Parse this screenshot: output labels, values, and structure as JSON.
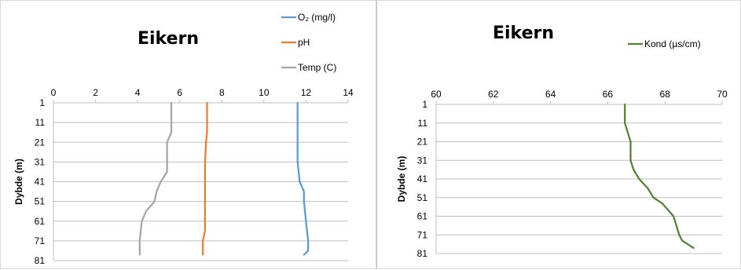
{
  "chart_data": [
    {
      "type": "line",
      "title": "Eikern",
      "xlabel": "",
      "ylabel": "Dybde (m)",
      "xlim": [
        0,
        14
      ],
      "x_ticks": [
        "0",
        "2",
        "4",
        "6",
        "8",
        "10",
        "12",
        "14"
      ],
      "ylim": [
        1,
        81
      ],
      "y_ticks": [
        "1",
        "11",
        "21",
        "31",
        "41",
        "51",
        "61",
        "71",
        "81"
      ],
      "y_reversed": true,
      "grid": "horizontal",
      "legend": "top-right",
      "series": [
        {
          "name": "O₂ (mg/l)",
          "color": "#5b9bd5",
          "points": [
            [
              11.6,
              1
            ],
            [
              11.6,
              11
            ],
            [
              11.6,
              21
            ],
            [
              11.6,
              31
            ],
            [
              11.7,
              41
            ],
            [
              11.9,
              46
            ],
            [
              11.9,
              51
            ],
            [
              12.0,
              61
            ],
            [
              12.1,
              71
            ],
            [
              12.1,
              76
            ],
            [
              11.9,
              78
            ]
          ]
        },
        {
          "name": "pH",
          "color": "#ed7d31",
          "points": [
            [
              7.3,
              1
            ],
            [
              7.3,
              11
            ],
            [
              7.3,
              16
            ],
            [
              7.25,
              21
            ],
            [
              7.2,
              31
            ],
            [
              7.2,
              41
            ],
            [
              7.2,
              51
            ],
            [
              7.2,
              61
            ],
            [
              7.2,
              66
            ],
            [
              7.1,
              71
            ],
            [
              7.1,
              78
            ]
          ]
        },
        {
          "name": "Temp (C)",
          "color": "#a5a5a5",
          "points": [
            [
              5.6,
              1
            ],
            [
              5.6,
              11
            ],
            [
              5.6,
              16
            ],
            [
              5.4,
              21
            ],
            [
              5.4,
              31
            ],
            [
              5.4,
              36
            ],
            [
              5.1,
              41
            ],
            [
              4.9,
              46
            ],
            [
              4.8,
              51
            ],
            [
              4.4,
              56
            ],
            [
              4.2,
              61
            ],
            [
              4.1,
              71
            ],
            [
              4.1,
              78
            ]
          ]
        }
      ]
    },
    {
      "type": "line",
      "title": "Eikern",
      "xlabel": "",
      "ylabel": "Dybde (m)",
      "xlim": [
        60,
        70
      ],
      "x_ticks": [
        "60",
        "62",
        "64",
        "66",
        "68",
        "70"
      ],
      "ylim": [
        1,
        81
      ],
      "y_ticks": [
        "1",
        "11",
        "21",
        "31",
        "41",
        "51",
        "61",
        "71",
        "81"
      ],
      "y_reversed": true,
      "grid": "horizontal",
      "legend": "top-right",
      "series": [
        {
          "name": "Kond (µs/cm)",
          "color": "#548235",
          "points": [
            [
              66.6,
              1
            ],
            [
              66.6,
              11
            ],
            [
              66.8,
              21
            ],
            [
              66.8,
              31
            ],
            [
              66.9,
              36
            ],
            [
              67.1,
              41
            ],
            [
              67.4,
              46
            ],
            [
              67.6,
              51
            ],
            [
              67.9,
              54
            ],
            [
              68.3,
              61
            ],
            [
              68.5,
              71
            ],
            [
              68.6,
              74
            ],
            [
              69.0,
              78
            ]
          ]
        }
      ]
    }
  ]
}
